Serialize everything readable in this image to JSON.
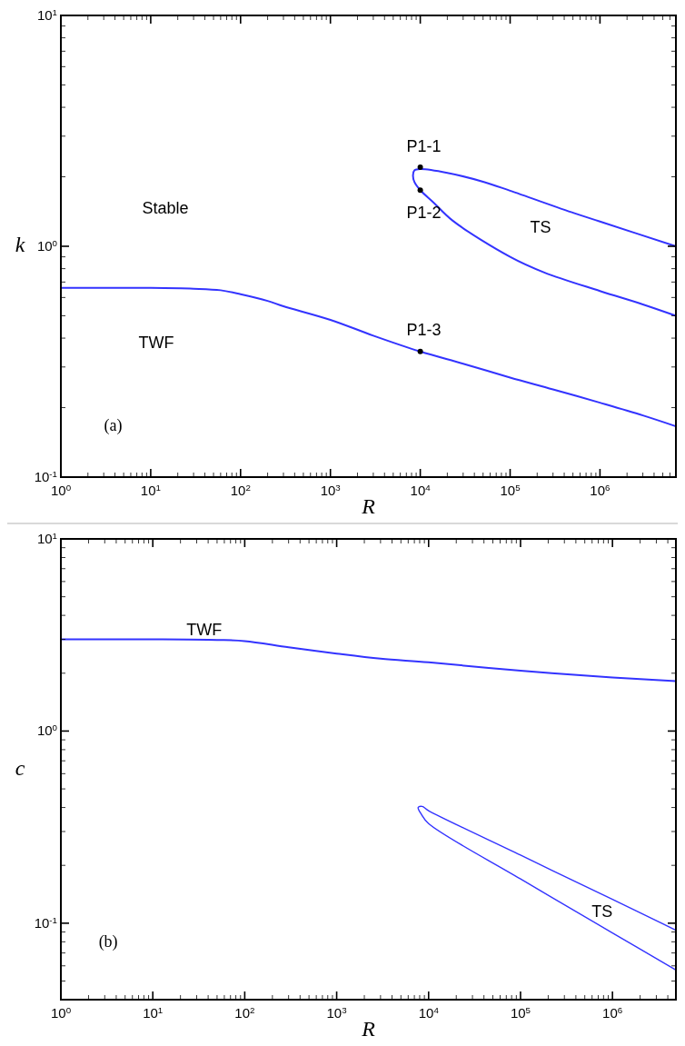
{
  "chart_data": [
    {
      "type": "line",
      "xlabel": "R",
      "ylabel": "k",
      "log": "xy",
      "grid": false,
      "xlim": [
        1,
        7000000
      ],
      "ylim": [
        0.1,
        10
      ],
      "xticks": [
        {
          "value": 1,
          "label": "10$^{0}$"
        },
        {
          "value": 2,
          "label": null
        },
        {
          "value": 3,
          "label": null
        },
        {
          "value": 4,
          "label": null
        },
        {
          "value": 5,
          "label": null
        },
        {
          "value": 6,
          "label": null
        },
        {
          "value": 7,
          "label": null
        },
        {
          "value": 8,
          "label": null
        },
        {
          "value": 9,
          "label": null
        },
        {
          "value": 10,
          "label": "10$^{1}$"
        },
        {
          "value": 20,
          "label": null
        },
        {
          "value": 30,
          "label": null
        },
        {
          "value": 40,
          "label": null
        },
        {
          "value": 50,
          "label": null
        },
        {
          "value": 60,
          "label": null
        },
        {
          "value": 70,
          "label": null
        },
        {
          "value": 80,
          "label": null
        },
        {
          "value": 90,
          "label": null
        },
        {
          "value": 100,
          "label": "10$^{2}$"
        },
        {
          "value": 200,
          "label": null
        },
        {
          "value": 300,
          "label": null
        },
        {
          "value": 400,
          "label": null
        },
        {
          "value": 500,
          "label": null
        },
        {
          "value": 600,
          "label": null
        },
        {
          "value": 700,
          "label": null
        },
        {
          "value": 800,
          "label": null
        },
        {
          "value": 900,
          "label": null
        },
        {
          "value": 1000,
          "label": "10$^{3}$"
        },
        {
          "value": 2000,
          "label": null
        },
        {
          "value": 3000,
          "label": null
        },
        {
          "value": 4000,
          "label": null
        },
        {
          "value": 5000,
          "label": null
        },
        {
          "value": 6000,
          "label": null
        },
        {
          "value": 7000,
          "label": null
        },
        {
          "value": 8000,
          "label": null
        },
        {
          "value": 9000,
          "label": null
        },
        {
          "value": 10000,
          "label": "10$^{4}$"
        },
        {
          "value": 20000,
          "label": null
        },
        {
          "value": 30000,
          "label": null
        },
        {
          "value": 40000,
          "label": null
        },
        {
          "value": 50000,
          "label": null
        },
        {
          "value": 60000,
          "label": null
        },
        {
          "value": 70000,
          "label": null
        },
        {
          "value": 80000,
          "label": null
        },
        {
          "value": 90000,
          "label": null
        },
        {
          "value": 100000,
          "label": "10$^{5}$"
        },
        {
          "value": 200000,
          "label": null
        },
        {
          "value": 300000,
          "label": null
        },
        {
          "value": 400000,
          "label": null
        },
        {
          "value": 500000,
          "label": null
        },
        {
          "value": 600000,
          "label": null
        },
        {
          "value": 700000,
          "label": null
        },
        {
          "value": 800000,
          "label": null
        },
        {
          "value": 900000,
          "label": null
        },
        {
          "value": 1000000,
          "label": "10$^{6}$"
        },
        {
          "value": 2000000,
          "label": null
        },
        {
          "value": 3000000,
          "label": null
        },
        {
          "value": 4000000,
          "label": null
        },
        {
          "value": 5000000,
          "label": null
        },
        {
          "value": 6000000,
          "label": null
        },
        {
          "value": 7000000,
          "label": null
        }
      ],
      "yticks": [
        {
          "value": 0.1,
          "label": "10$^{-1}$"
        },
        {
          "value": 0.2,
          "label": null
        },
        {
          "value": 0.3,
          "label": null
        },
        {
          "value": 0.4,
          "label": null
        },
        {
          "value": 0.5,
          "label": null
        },
        {
          "value": 0.6,
          "label": null
        },
        {
          "value": 0.7,
          "label": null
        },
        {
          "value": 0.8,
          "label": null
        },
        {
          "value": 0.9,
          "label": null
        },
        {
          "value": 1,
          "label": "10$^{0}$"
        },
        {
          "value": 2,
          "label": null
        },
        {
          "value": 3,
          "label": null
        },
        {
          "value": 4,
          "label": null
        },
        {
          "value": 5,
          "label": null
        },
        {
          "value": 6,
          "label": null
        },
        {
          "value": 7,
          "label": null
        },
        {
          "value": 8,
          "label": null
        },
        {
          "value": 9,
          "label": null
        },
        {
          "value": 10,
          "label": "10$^{1}$"
        }
      ],
      "series": [
        {
          "color": "#3333ff",
          "x": [
            1,
            10,
            30,
            60,
            100,
            200,
            300,
            1000,
            3000,
            10000,
            30000,
            100000,
            300000,
            1000000,
            3000000,
            7000000
          ],
          "values": [
            0.66,
            0.66,
            0.655,
            0.645,
            0.62,
            0.58,
            0.55,
            0.48,
            0.41,
            0.35,
            0.31,
            0.27,
            0.24,
            0.21,
            0.185,
            0.166
          ]
        },
        {
          "color": "#3333ff",
          "x": [
            7000000,
            3000000,
            1000000,
            240000,
            100000,
            23000,
            14000,
            10000,
            8600,
            8300,
            8600,
            10000,
            20000,
            51000,
            100000,
            520000,
            1000000,
            7000000
          ],
          "values": [
            0.5,
            0.56,
            0.64,
            0.77,
            0.9,
            1.29,
            1.55,
            1.75,
            1.9,
            2.03,
            2.13,
            2.16,
            2.08,
            1.9,
            1.74,
            1.39,
            1.28,
            1.0
          ]
        },
        {
          "type": "scatter",
          "color": "#000000",
          "marker": "circle",
          "x": [
            10000,
            10000,
            10000
          ],
          "values": [
            2.2,
            1.75,
            0.35
          ]
        }
      ],
      "annotations": [
        "P1-1",
        "P1-2",
        "P1-3",
        "Stable",
        "TS",
        "TWF",
        "(a)"
      ]
    },
    {
      "type": "line",
      "xlabel": "R",
      "ylabel": "c",
      "log": "xy",
      "grid": false,
      "xlim": [
        1,
        4900000
      ],
      "ylim": [
        0.04,
        10
      ],
      "xticks": [
        {
          "value": 1,
          "label": "10$^{0}$"
        },
        {
          "value": 2,
          "label": null
        },
        {
          "value": 3,
          "label": null
        },
        {
          "value": 4,
          "label": null
        },
        {
          "value": 5,
          "label": null
        },
        {
          "value": 6,
          "label": null
        },
        {
          "value": 7,
          "label": null
        },
        {
          "value": 8,
          "label": null
        },
        {
          "value": 9,
          "label": null
        },
        {
          "value": 10,
          "label": "10$^{1}$"
        },
        {
          "value": 20,
          "label": null
        },
        {
          "value": 30,
          "label": null
        },
        {
          "value": 40,
          "label": null
        },
        {
          "value": 50,
          "label": null
        },
        {
          "value": 60,
          "label": null
        },
        {
          "value": 70,
          "label": null
        },
        {
          "value": 80,
          "label": null
        },
        {
          "value": 90,
          "label": null
        },
        {
          "value": 100,
          "label": "10$^{2}$"
        },
        {
          "value": 200,
          "label": null
        },
        {
          "value": 300,
          "label": null
        },
        {
          "value": 400,
          "label": null
        },
        {
          "value": 500,
          "label": null
        },
        {
          "value": 600,
          "label": null
        },
        {
          "value": 700,
          "label": null
        },
        {
          "value": 800,
          "label": null
        },
        {
          "value": 900,
          "label": null
        },
        {
          "value": 1000,
          "label": "10$^{3}$"
        },
        {
          "value": 2000,
          "label": null
        },
        {
          "value": 3000,
          "label": null
        },
        {
          "value": 4000,
          "label": null
        },
        {
          "value": 5000,
          "label": null
        },
        {
          "value": 6000,
          "label": null
        },
        {
          "value": 7000,
          "label": null
        },
        {
          "value": 8000,
          "label": null
        },
        {
          "value": 9000,
          "label": null
        },
        {
          "value": 10000,
          "label": "10$^{4}$"
        },
        {
          "value": 20000,
          "label": null
        },
        {
          "value": 30000,
          "label": null
        },
        {
          "value": 40000,
          "label": null
        },
        {
          "value": 50000,
          "label": null
        },
        {
          "value": 60000,
          "label": null
        },
        {
          "value": 70000,
          "label": null
        },
        {
          "value": 80000,
          "label": null
        },
        {
          "value": 90000,
          "label": null
        },
        {
          "value": 100000,
          "label": "10$^{5}$"
        },
        {
          "value": 200000,
          "label": null
        },
        {
          "value": 300000,
          "label": null
        },
        {
          "value": 400000,
          "label": null
        },
        {
          "value": 500000,
          "label": null
        },
        {
          "value": 600000,
          "label": null
        },
        {
          "value": 700000,
          "label": null
        },
        {
          "value": 800000,
          "label": null
        },
        {
          "value": 900000,
          "label": null
        },
        {
          "value": 1000000,
          "label": "10$^{6}$"
        },
        {
          "value": 2000000,
          "label": null
        },
        {
          "value": 3000000,
          "label": null
        },
        {
          "value": 4000000,
          "label": null
        }
      ],
      "yticks": [
        {
          "value": 0.05,
          "label": null
        },
        {
          "value": 0.06,
          "label": null
        },
        {
          "value": 0.07,
          "label": null
        },
        {
          "value": 0.08,
          "label": null
        },
        {
          "value": 0.09,
          "label": null
        },
        {
          "value": 0.1,
          "label": "10$^{-1}$"
        },
        {
          "value": 0.2,
          "label": null
        },
        {
          "value": 0.3,
          "label": null
        },
        {
          "value": 0.4,
          "label": null
        },
        {
          "value": 0.5,
          "label": null
        },
        {
          "value": 0.6,
          "label": null
        },
        {
          "value": 0.7,
          "label": null
        },
        {
          "value": 0.8,
          "label": null
        },
        {
          "value": 0.9,
          "label": null
        },
        {
          "value": 1,
          "label": "10$^{0}$"
        },
        {
          "value": 2,
          "label": null
        },
        {
          "value": 3,
          "label": null
        },
        {
          "value": 4,
          "label": null
        },
        {
          "value": 5,
          "label": null
        },
        {
          "value": 6,
          "label": null
        },
        {
          "value": 7,
          "label": null
        },
        {
          "value": 8,
          "label": null
        },
        {
          "value": 9,
          "label": null
        },
        {
          "value": 10,
          "label": "10$^{1}$"
        }
      ],
      "series": [
        {
          "color": "#3333ff",
          "x": [
            1,
            10,
            50,
            100,
            300,
            1000,
            3000,
            10000,
            100000,
            1000000,
            4900000
          ],
          "values": [
            3.0,
            3.0,
            2.98,
            2.94,
            2.73,
            2.53,
            2.38,
            2.28,
            2.06,
            1.9,
            1.82
          ]
        },
        {
          "color": "#3333ff",
          "x": [
            4900000,
            1000000,
            100000,
            10000,
            8300,
            7700,
            8500,
            10000,
            100000,
            1000000,
            4900000
          ],
          "values": [
            0.057,
            0.089,
            0.17,
            0.33,
            0.37,
            0.4,
            0.405,
            0.385,
            0.226,
            0.133,
            0.092
          ]
        }
      ],
      "annotations": [
        "TWF",
        "TS",
        "(b)"
      ]
    }
  ]
}
